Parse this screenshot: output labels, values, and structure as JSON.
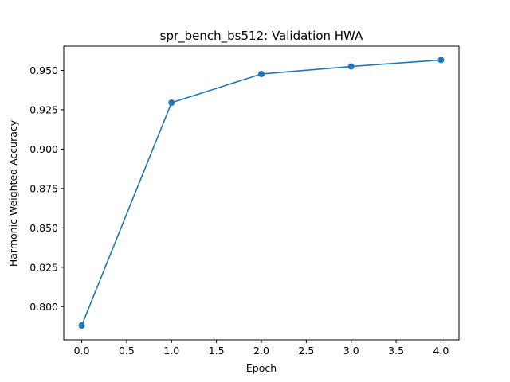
{
  "chart_data": {
    "type": "line",
    "title": "spr_bench_bs512: Validation HWA",
    "xlabel": "Epoch",
    "ylabel": "Harmonic-Weighted Accuracy",
    "x": [
      0,
      1,
      2,
      3,
      4
    ],
    "series": [
      {
        "values": [
          0.788,
          0.9295,
          0.9477,
          0.9525,
          0.9566
        ],
        "color": "#1f77b4",
        "marker": "circle"
      }
    ],
    "xlim": [
      -0.2,
      4.2
    ],
    "ylim": [
      0.7789,
      0.9654
    ],
    "xticks": [
      0.0,
      0.5,
      1.0,
      1.5,
      2.0,
      2.5,
      3.0,
      3.5,
      4.0
    ],
    "xtick_labels": [
      "0.0",
      "0.5",
      "1.0",
      "1.5",
      "2.0",
      "2.5",
      "3.0",
      "3.5",
      "4.0"
    ],
    "yticks": [
      0.8,
      0.825,
      0.85,
      0.875,
      0.9,
      0.925,
      0.95
    ],
    "ytick_labels": [
      "0.800",
      "0.825",
      "0.850",
      "0.875",
      "0.900",
      "0.925",
      "0.950"
    ],
    "grid": false,
    "legend": "none"
  }
}
